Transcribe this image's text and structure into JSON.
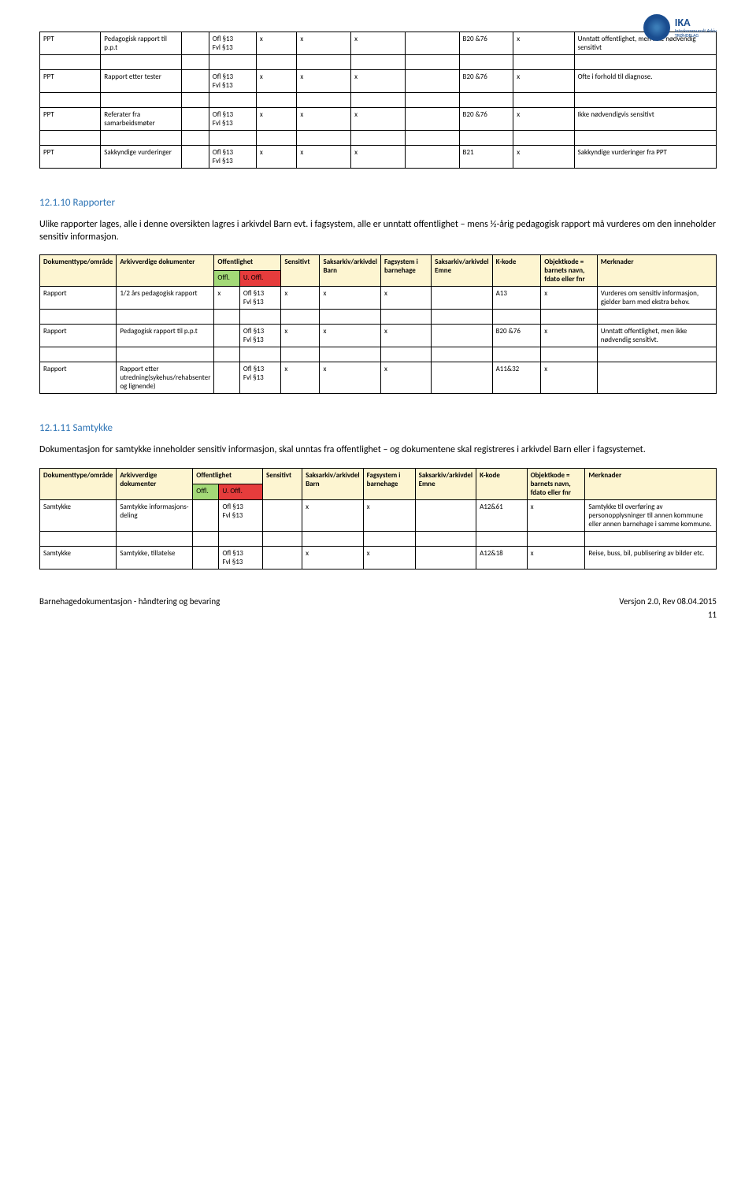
{
  "logo": {
    "main": "IKA",
    "sub1": "Interkommunalt Arkiv",
    "sub2": "TRØNDELAG"
  },
  "table1": {
    "rows": [
      {
        "type": "PPT",
        "doc": "Pedagogisk rapport til p.p.t",
        "offl": "",
        "uoffl": "Ofl §13\nFvl §13",
        "sens": "x",
        "sak1": "x",
        "fag": "x",
        "sak2": "",
        "kcode": "B20 &76",
        "obj": "x",
        "merk": "Unntatt offentlighet, men ikke nødvendig sensitivt"
      },
      {
        "type": "PPT",
        "doc": "Rapport etter tester",
        "offl": "",
        "uoffl": "Ofl §13\nFvl §13",
        "sens": "x",
        "sak1": "x",
        "fag": "x",
        "sak2": "",
        "kcode": "B20 &76",
        "obj": "x",
        "merk": "Ofte i forhold til diagnose."
      },
      {
        "type": "PPT",
        "doc": "Referater fra samarbeidsmøter",
        "offl": "",
        "uoffl": "Ofl §13\nFvl §13",
        "sens": "x",
        "sak1": "x",
        "fag": "x",
        "sak2": "",
        "kcode": "B20 &76",
        "obj": "x",
        "merk": "Ikke nødvendigvis sensitivt"
      },
      {
        "type": "PPT",
        "doc": "Sakkyndige vurderinger",
        "offl": "",
        "uoffl": "Ofl §13\nFvl §13",
        "sens": "x",
        "sak1": "x",
        "fag": "x",
        "sak2": "",
        "kcode": "B21",
        "obj": "x",
        "merk": "Sakkyndige vurderinger fra PPT"
      }
    ]
  },
  "section_rapporter": {
    "heading": "12.1.10 Rapporter",
    "paragraph": "Ulike rapporter lages, alle i denne oversikten lagres i arkivdel Barn evt. i fagsystem, alle er unntatt offentlighet – mens ½-årig pedagogisk rapport må vurderes om den inneholder sensitiv informasjon."
  },
  "table2_headers": {
    "c1": "Dokumenttype/område",
    "c2": "Arkivverdige dokumenter",
    "c3": "Offentlighet",
    "c4": "Sensitivt",
    "c5": "Saksarkiv/arkivdel Barn",
    "c6": "Fagsystem i barnehage",
    "c7": "Saksarkiv/arkivdel Emne",
    "c8": "K-kode",
    "c9": "Objektkode = barnets navn, fdato eller fnr",
    "c10": "Merknader",
    "sub_offl": "Offl.",
    "sub_uoffl": "U. Offl."
  },
  "table2_rows": [
    {
      "type": "Rapport",
      "doc": "1/2 års pedagogisk rapport",
      "offl": "x",
      "uoffl": "Ofl §13\nFvl §13",
      "sens": "x",
      "sak1": "x",
      "fag": "x",
      "sak2": "",
      "kcode": "A13",
      "obj": "x",
      "merk": "Vurderes om sensitiv informasjon, gjelder barn med ekstra behov."
    },
    {
      "type": "Rapport",
      "doc": "Pedagogisk rapport til p.p.t",
      "offl": "",
      "uoffl": "Ofl §13\nFvl §13",
      "sens": "x",
      "sak1": "x",
      "fag": "x",
      "sak2": "",
      "kcode": "B20 &76",
      "obj": "x",
      "merk": "Unntatt offentlighet, men ikke nødvendig sensitivt."
    },
    {
      "type": "Rapport",
      "doc": "Rapport etter utredning(sykehus/rehabsenter og lignende)",
      "offl": "",
      "uoffl": "Ofl §13\nFvl §13",
      "sens": "x",
      "sak1": "x",
      "fag": "x",
      "sak2": "",
      "kcode": "A11&32",
      "obj": "x",
      "merk": ""
    }
  ],
  "section_samtykke": {
    "heading": "12.1.11 Samtykke",
    "paragraph": "Dokumentasjon for samtykke inneholder sensitiv informasjon, skal unntas fra offentlighet – og dokumentene skal registreres i arkivdel Barn eller i fagsystemet."
  },
  "table3_headers": {
    "c1": "Dokumenttype/område",
    "c2": "Arkivverdige dokumenter",
    "c3": "Offentlighet",
    "c4": "Sensitivt",
    "c5": "Saksarkiv/arkivdel Barn",
    "c6": "Fagsystem i barnehage",
    "c7": "Saksarkiv/arkivdel Emne",
    "c8": "K-kode",
    "c9": "Objektkode = barnets navn, fdato eller fnr",
    "c10": "Merknader",
    "sub_offl": "Offl.",
    "sub_uoffl": "U. Offl."
  },
  "table3_rows": [
    {
      "type": "Samtykke",
      "doc": "Samtykke informasjons-deling",
      "offl": "",
      "uoffl": "Ofl §13\nFvl §13",
      "sens": "",
      "sak1": "x",
      "fag": "x",
      "sak2": "",
      "kcode": "A12&61",
      "obj": "x",
      "merk": "Samtykke til overføring av personopplysninger til annen kommune eller annen barnehage i samme kommune."
    },
    {
      "type": "Samtykke",
      "doc": "Samtykke, tillatelse",
      "offl": "",
      "uoffl": "Ofl §13\nFvl §13",
      "sens": "",
      "sak1": "x",
      "fag": "x",
      "sak2": "",
      "kcode": "A12&18",
      "obj": "x",
      "merk": "Reise, buss, bil, publisering av bilder etc."
    }
  ],
  "footer": {
    "left": "Barnehagedokumentasjon - håndtering og bevaring",
    "right": "Versjon 2.0,  Rev 08.04.2015",
    "page": "11"
  }
}
